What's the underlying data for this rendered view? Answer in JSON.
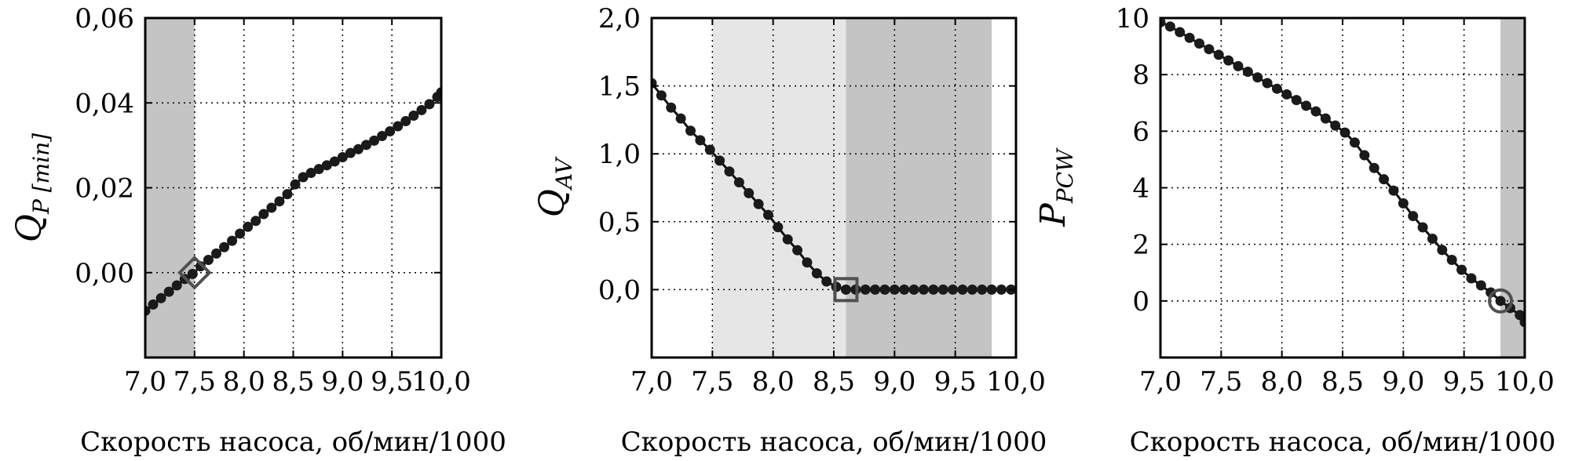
{
  "colors": {
    "line": "#111111",
    "marker": "#1a1a1a",
    "shade_dark": "#c4c4c4",
    "shade_light": "#e6e6e6",
    "special_marker": "#505050",
    "grid": "#000000"
  },
  "chart_data": [
    {
      "type": "line",
      "ylabel_main": "Q",
      "ylabel_sub": "P [min]",
      "xlabel": "Скорость насоса, об/мин/1000",
      "xlim": [
        7.0,
        10.0
      ],
      "ylim": [
        -0.02,
        0.06
      ],
      "xticks": [
        7.0,
        7.5,
        8.0,
        8.5,
        9.0,
        9.5,
        10.0
      ],
      "xtick_labels": [
        "7,0",
        "7,5",
        "8,0",
        "8,5",
        "9,0",
        "9,5",
        "10,0"
      ],
      "yticks": [
        0.0,
        0.02,
        0.04,
        0.06
      ],
      "ytick_labels": [
        "0,00",
        "0,02",
        "0,04",
        "0,06"
      ],
      "grid": true,
      "shaded": [
        {
          "x0": 7.0,
          "x1": 7.5,
          "shade": "dark"
        }
      ],
      "special_point": {
        "x": 7.5,
        "y": 0.0,
        "shape": "diamond"
      },
      "series": [
        {
          "x": [
            7.0,
            7.08,
            7.16,
            7.24,
            7.32,
            7.4,
            7.48,
            7.56,
            7.64,
            7.72,
            7.8,
            7.88,
            7.96,
            8.04,
            8.12,
            8.2,
            8.28,
            8.36,
            8.44,
            8.52,
            8.6,
            8.68,
            8.76,
            8.84,
            8.92,
            9.0,
            9.08,
            9.16,
            9.24,
            9.32,
            9.4,
            9.48,
            9.56,
            9.64,
            9.72,
            9.8,
            9.88,
            9.96,
            10.0
          ],
          "y": [
            -0.009,
            -0.0075,
            -0.006,
            -0.0045,
            -0.003,
            -0.0015,
            -0.0003,
            0.0015,
            0.003,
            0.0045,
            0.006,
            0.0075,
            0.0092,
            0.0108,
            0.0122,
            0.0138,
            0.0153,
            0.0168,
            0.0185,
            0.0208,
            0.0225,
            0.0235,
            0.0244,
            0.0253,
            0.0262,
            0.0272,
            0.0282,
            0.0291,
            0.0301,
            0.0311,
            0.0322,
            0.0333,
            0.0345,
            0.0357,
            0.037,
            0.0383,
            0.0397,
            0.0414,
            0.0425
          ]
        }
      ]
    },
    {
      "type": "line",
      "ylabel_main": "Q",
      "ylabel_sub": "AV",
      "xlabel": "Скорость насоса, об/мин/1000",
      "xlim": [
        7.0,
        10.0
      ],
      "ylim": [
        -0.5,
        2.0
      ],
      "xticks": [
        7.0,
        7.5,
        8.0,
        8.5,
        9.0,
        9.5,
        10.0
      ],
      "xtick_labels": [
        "7,0",
        "7,5",
        "8,0",
        "8,5",
        "9,0",
        "9,5",
        "10,0"
      ],
      "yticks": [
        0.0,
        0.5,
        1.0,
        1.5,
        2.0
      ],
      "ytick_labels": [
        "0,0",
        "0,5",
        "1,0",
        "1,5",
        "2,0"
      ],
      "grid": true,
      "shaded": [
        {
          "x0": 7.5,
          "x1": 8.6,
          "shade": "light"
        },
        {
          "x0": 8.6,
          "x1": 9.8,
          "shade": "dark"
        }
      ],
      "special_point": {
        "x": 8.6,
        "y": 0.0,
        "shape": "square"
      },
      "series": [
        {
          "x": [
            7.0,
            7.08,
            7.16,
            7.24,
            7.32,
            7.4,
            7.48,
            7.56,
            7.64,
            7.72,
            7.8,
            7.88,
            7.96,
            8.04,
            8.12,
            8.2,
            8.28,
            8.36,
            8.44,
            8.52,
            8.6,
            8.68,
            8.76,
            8.84,
            8.92,
            9.0,
            9.08,
            9.16,
            9.24,
            9.32,
            9.4,
            9.48,
            9.56,
            9.64,
            9.72,
            9.8,
            9.88,
            9.96,
            10.04
          ],
          "y": [
            1.52,
            1.43,
            1.34,
            1.26,
            1.17,
            1.1,
            1.03,
            0.95,
            0.87,
            0.79,
            0.71,
            0.63,
            0.55,
            0.46,
            0.37,
            0.29,
            0.2,
            0.12,
            0.06,
            0.02,
            0.0,
            0.0,
            0.0,
            0.0,
            0.0,
            0.0,
            0.0,
            0.0,
            0.0,
            0.0,
            0.0,
            0.0,
            0.0,
            0.0,
            0.0,
            0.0,
            0.0,
            0.0,
            0.0
          ]
        }
      ]
    },
    {
      "type": "line",
      "ylabel_main": "P",
      "ylabel_sub": "PCW",
      "xlabel": "Скорость насоса, об/мин/1000",
      "xlim": [
        7.0,
        10.0
      ],
      "ylim": [
        -2.0,
        10.0
      ],
      "xticks": [
        7.0,
        7.5,
        8.0,
        8.5,
        9.0,
        9.5,
        10.0
      ],
      "xtick_labels": [
        "7,0",
        "7,5",
        "8,0",
        "8,5",
        "9,0",
        "9,5",
        "10,0"
      ],
      "yticks": [
        0,
        2,
        4,
        6,
        8,
        10
      ],
      "ytick_labels": [
        "0",
        "2",
        "4",
        "6",
        "8",
        "10"
      ],
      "grid": true,
      "shaded": [
        {
          "x0": 9.8,
          "x1": 10.0,
          "shade": "dark"
        }
      ],
      "special_point": {
        "x": 9.8,
        "y": 0.0,
        "shape": "circle"
      },
      "series": [
        {
          "x": [
            7.0,
            7.08,
            7.16,
            7.24,
            7.32,
            7.4,
            7.48,
            7.56,
            7.64,
            7.72,
            7.8,
            7.88,
            7.96,
            8.04,
            8.12,
            8.2,
            8.28,
            8.36,
            8.44,
            8.52,
            8.6,
            8.68,
            8.76,
            8.84,
            8.92,
            9.0,
            9.08,
            9.16,
            9.24,
            9.32,
            9.4,
            9.48,
            9.56,
            9.64,
            9.72,
            9.8,
            9.88,
            9.96,
            10.0
          ],
          "y": [
            9.85,
            9.7,
            9.5,
            9.3,
            9.1,
            8.9,
            8.7,
            8.5,
            8.3,
            8.1,
            7.9,
            7.7,
            7.5,
            7.3,
            7.1,
            6.9,
            6.7,
            6.45,
            6.2,
            5.95,
            5.6,
            5.15,
            4.7,
            4.3,
            3.9,
            3.45,
            3.0,
            2.6,
            2.2,
            1.8,
            1.45,
            1.1,
            0.8,
            0.55,
            0.3,
            0.0,
            -0.25,
            -0.5,
            -0.75
          ]
        }
      ]
    }
  ]
}
